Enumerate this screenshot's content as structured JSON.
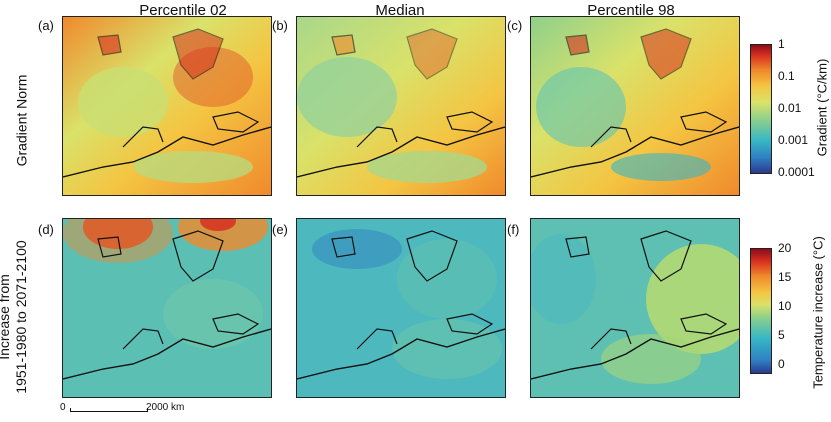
{
  "columns": [
    "Percentile 02",
    "Median",
    "Percentile 98"
  ],
  "rows": [
    {
      "label": "Gradient Norm"
    },
    {
      "label_line1": "Increase from",
      "label_line2": "1951-1980 to 2071-2100"
    }
  ],
  "panels": [
    "(a)",
    "(b)",
    "(c)",
    "(d)",
    "(e)",
    "(f)"
  ],
  "colorbar_top": {
    "title": "Gradient (°C/km)",
    "ticks": [
      "1",
      "0.1",
      "0.01",
      "0.001",
      "0.0001"
    ]
  },
  "colorbar_bottom": {
    "title": "Temperature increase (°C)",
    "ticks": [
      "20",
      "15",
      "10",
      "5",
      "0"
    ]
  },
  "scalebar": {
    "start": "0",
    "end": "2000 km"
  },
  "colors": {
    "scale": [
      "#2b3a8f",
      "#2f7fc1",
      "#37b6c6",
      "#8fd08a",
      "#d9e26a",
      "#f4c542",
      "#f08a2c",
      "#d7301f",
      "#8c0d1a"
    ]
  }
}
